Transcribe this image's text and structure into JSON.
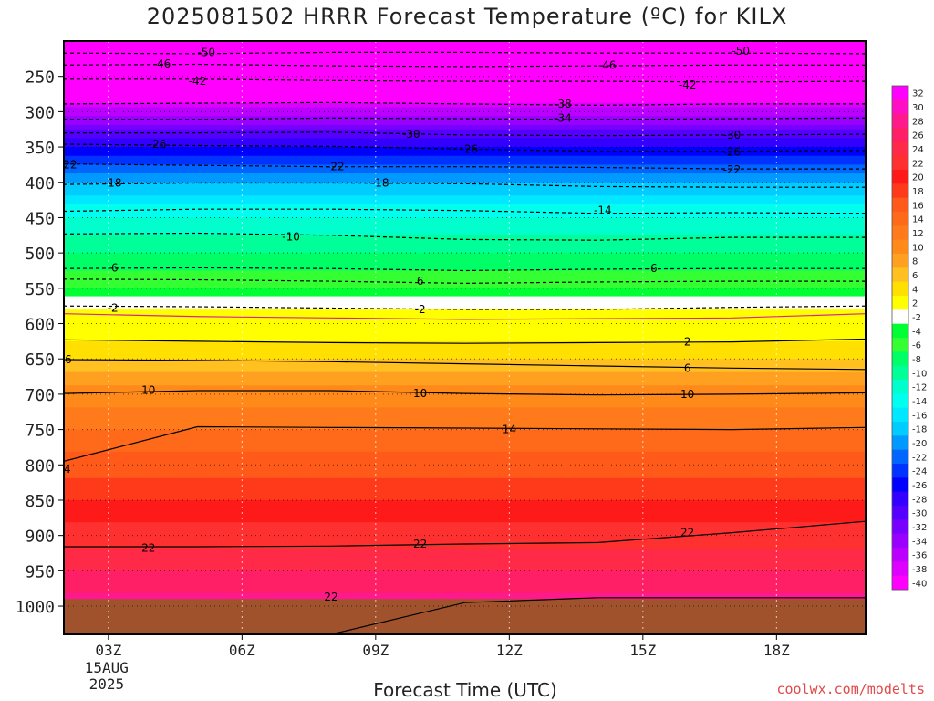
{
  "title": "2025081502 HRRR Forecast Temperature (ºC) for KILX",
  "credit": "coolwx.com/modelts",
  "colors": {
    "ground": "#a0522d",
    "above_zero_line": "#d62796",
    "contour": "#000000"
  },
  "chart_data": {
    "type": "heatmap",
    "title": "2025081502 HRRR Forecast Temperature (ºC) for KILX",
    "xlabel": "Forecast Time (UTC)",
    "ylabel": "",
    "x_ticks": [
      {
        "label": "03Z",
        "sub": [
          "15AUG",
          "2025"
        ],
        "hour": 3
      },
      {
        "label": "06Z",
        "hour": 6
      },
      {
        "label": "09Z",
        "hour": 9
      },
      {
        "label": "12Z",
        "hour": 12
      },
      {
        "label": "15Z",
        "hour": 15
      },
      {
        "label": "18Z",
        "hour": 18
      }
    ],
    "xlim": [
      2,
      20
    ],
    "y_ticks": [
      250,
      300,
      350,
      400,
      450,
      500,
      550,
      600,
      650,
      700,
      750,
      800,
      850,
      900,
      950,
      1000
    ],
    "ylim_hPa": [
      200,
      1040
    ],
    "surface_pressure_hPa": 990,
    "colorbar": {
      "labels": [
        32,
        30,
        28,
        26,
        24,
        22,
        20,
        18,
        16,
        14,
        12,
        10,
        8,
        6,
        4,
        2,
        -2,
        -4,
        -6,
        -8,
        -10,
        -12,
        -14,
        -16,
        -18,
        -20,
        -22,
        -24,
        -26,
        -28,
        -30,
        -32,
        -34,
        -36,
        -38,
        -40
      ],
      "colors": [
        "#ff00ff",
        "#ff0fc4",
        "#ff1a8c",
        "#ff1f66",
        "#ff2a48",
        "#ff3030",
        "#ff1a1a",
        "#ff3a1a",
        "#ff5a1a",
        "#ff6a1a",
        "#ff7a1a",
        "#ff8a1a",
        "#ffa020",
        "#ffc020",
        "#ffe000",
        "#ffff00",
        "#ffffff",
        "#00ff33",
        "#33ff33",
        "#00ff66",
        "#00ff99",
        "#00ffcc",
        "#00ffee",
        "#00e8ff",
        "#00ccff",
        "#0099ff",
        "#0066ff",
        "#0033ff",
        "#0000ff",
        "#3300ff",
        "#5500ff",
        "#7700ff",
        "#9900ff",
        "#bb00ff",
        "#dd00ff",
        "#ff00ff"
      ]
    },
    "temperature_profile": [
      {
        "p": 200,
        "t": -58
      },
      {
        "p": 250,
        "t": -46
      },
      {
        "p": 300,
        "t": -36
      },
      {
        "p": 350,
        "t": -27
      },
      {
        "p": 400,
        "t": -19
      },
      {
        "p": 450,
        "t": -13
      },
      {
        "p": 500,
        "t": -9
      },
      {
        "p": 550,
        "t": -5
      },
      {
        "p": 580,
        "t": 0
      },
      {
        "p": 600,
        "t": 1
      },
      {
        "p": 650,
        "t": 5
      },
      {
        "p": 700,
        "t": 10
      },
      {
        "p": 750,
        "t": 13
      },
      {
        "p": 800,
        "t": 16
      },
      {
        "p": 850,
        "t": 19
      },
      {
        "p": 900,
        "t": 22
      },
      {
        "p": 950,
        "t": 25
      },
      {
        "p": 1000,
        "t": 28
      }
    ],
    "contours": [
      {
        "label": "-50",
        "dashed": true,
        "p": [
          217,
          218,
          216,
          216,
          217,
          217,
          218
        ],
        "label_at": [
          [
            5.2,
            216
          ],
          [
            17.2,
            214
          ]
        ]
      },
      {
        "label": "-46",
        "dashed": true,
        "p": [
          234,
          233,
          235,
          236,
          235,
          234,
          234
        ],
        "label_at": [
          [
            4.2,
            232
          ],
          [
            14.2,
            234
          ]
        ]
      },
      {
        "label": "-42",
        "dashed": true,
        "p": [
          254,
          254,
          256,
          257,
          257,
          258,
          257
        ],
        "label_at": [
          [
            5.0,
            257
          ],
          [
            16.0,
            262
          ]
        ]
      },
      {
        "label": "-38",
        "dashed": true,
        "p": [
          289,
          288,
          287,
          289,
          291,
          289,
          289
        ],
        "label_at": [
          [
            13.2,
            289
          ]
        ]
      },
      {
        "label": "-34",
        "dashed": true,
        "p": [
          311,
          311,
          309,
          310,
          311,
          310,
          309
        ],
        "label_at": [
          [
            13.2,
            309
          ]
        ]
      },
      {
        "label": "-30",
        "dashed": true,
        "p": [
          330,
          330,
          329,
          333,
          334,
          333,
          332
        ],
        "label_at": [
          [
            9.8,
            332
          ],
          [
            17.0,
            333
          ]
        ]
      },
      {
        "label": "-26",
        "dashed": true,
        "p": [
          346,
          348,
          349,
          353,
          356,
          356,
          355
        ],
        "label_at": [
          [
            4.1,
            346
          ],
          [
            11.1,
            353
          ],
          [
            17.0,
            357
          ]
        ]
      },
      {
        "label": "-22",
        "dashed": true,
        "p": [
          374,
          376,
          378,
          378,
          379,
          381,
          381
        ],
        "label_at": [
          [
            2.1,
            375
          ],
          [
            8.1,
            378
          ],
          [
            17.0,
            382
          ]
        ]
      },
      {
        "label": "-18",
        "dashed": true,
        "p": [
          403,
          401,
          401,
          402,
          406,
          407,
          407
        ],
        "label_at": [
          [
            3.1,
            401
          ],
          [
            9.1,
            401
          ]
        ]
      },
      {
        "label": "-14",
        "dashed": true,
        "p": [
          441,
          438,
          438,
          440,
          444,
          443,
          444
        ],
        "label_at": [
          [
            14.1,
            440
          ]
        ]
      },
      {
        "label": "-10",
        "dashed": true,
        "p": [
          473,
          472,
          475,
          481,
          482,
          478,
          478
        ],
        "label_at": [
          [
            7.1,
            477
          ]
        ]
      },
      {
        "label": "-6",
        "dashed": true,
        "p": [
          522,
          521,
          522,
          525,
          523,
          522,
          522
        ],
        "label_at": [
          [
            3.1,
            521
          ],
          [
            15.2,
            522
          ]
        ]
      },
      {
        "label": "6",
        "dashed": true,
        "p": [
          537,
          538,
          540,
          543,
          541,
          540,
          540
        ],
        "label_at": [
          [
            10.0,
            540
          ]
        ]
      },
      {
        "label": "-2",
        "dashed": true,
        "p": [
          575,
          576,
          578,
          580,
          580,
          577,
          575
        ],
        "label_at": [
          [
            3.1,
            578
          ],
          [
            10.0,
            580
          ]
        ]
      },
      {
        "label": "2",
        "dashed": false,
        "p": [
          623,
          625,
          627,
          628,
          627,
          626,
          622
        ],
        "label_at": [
          [
            16.0,
            626
          ]
        ]
      },
      {
        "label": "6",
        "dashed": false,
        "p": [
          651,
          652,
          654,
          657,
          660,
          663,
          665
        ],
        "label_at": [
          [
            2.1,
            651
          ],
          [
            16.0,
            663
          ]
        ]
      },
      {
        "label": "10",
        "dashed": false,
        "p": [
          699,
          695,
          695,
          699,
          701,
          700,
          698
        ],
        "label_at": [
          [
            3.9,
            694
          ],
          [
            10.0,
            699
          ],
          [
            16.0,
            700
          ]
        ]
      },
      {
        "label": "14",
        "dashed": false,
        "p": [
          795,
          746,
          747,
          748,
          749,
          750,
          747
        ],
        "label_at": [
          [
            2.0,
            806
          ],
          [
            12.0,
            750
          ]
        ]
      },
      {
        "label": "22",
        "dashed": false,
        "p": [
          916,
          916,
          915,
          912,
          910,
          896,
          880
        ],
        "label_at": [
          [
            3.9,
            918
          ],
          [
            10.0,
            912
          ],
          [
            16.0,
            896
          ]
        ]
      },
      {
        "label": "22",
        "dashed": false,
        "p": [
          1040,
          1040,
          1040,
          995,
          988,
          988,
          988
        ],
        "label_at": [
          [
            8.0,
            987
          ]
        ]
      }
    ]
  }
}
